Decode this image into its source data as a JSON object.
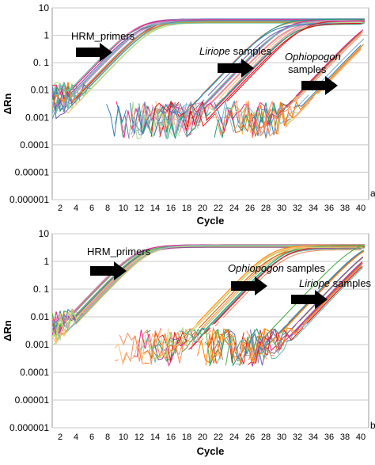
{
  "chart_data": [
    {
      "type": "line",
      "panel_label": "a",
      "xlabel": "Cycle",
      "ylabel": "ΔRn",
      "yscale": "log",
      "ylim": [
        1e-06,
        10
      ],
      "xlim": [
        1,
        41
      ],
      "x_ticks": [
        2,
        4,
        6,
        8,
        10,
        12,
        14,
        16,
        18,
        20,
        22,
        24,
        26,
        28,
        30,
        32,
        34,
        36,
        38,
        40
      ],
      "y_ticks": [
        "0.000001",
        "0.00001",
        "0.0001",
        "0.001",
        "0.01",
        "0. 1",
        "1",
        "10"
      ],
      "grid": "horizontal",
      "groups": [
        {
          "label": "HRM_primers",
          "italic": false,
          "n_curves": 24,
          "threshold_cycle_range": [
            4.2,
            7.0
          ],
          "plateau_range": [
            2.8,
            4.0
          ]
        },
        {
          "label": "Liriope samples",
          "italic_word": "Liriope",
          "n_curves": 20,
          "threshold_cycle_range": [
            21.0,
            26.0
          ],
          "plateau_range": [
            2.4,
            4.0
          ]
        },
        {
          "label": "Ophiopogon samples",
          "italic_word": "Ophiopogon",
          "n_curves": 12,
          "threshold_cycle_range": [
            33.0,
            36.5
          ],
          "plateau_range": null
        }
      ],
      "annotations": [
        {
          "text": "HRM_primers",
          "points_to_cycle": 8.5
        },
        {
          "text": "Liriope samples",
          "points_to_cycle": 25
        },
        {
          "text": "Ophiopogon samples",
          "points_to_cycle": 38.5
        }
      ]
    },
    {
      "type": "line",
      "panel_label": "b",
      "xlabel": "Cycle",
      "ylabel": "ΔRn",
      "yscale": "log",
      "ylim": [
        1e-06,
        10
      ],
      "xlim": [
        1,
        41
      ],
      "x_ticks": [
        2,
        4,
        6,
        8,
        10,
        12,
        14,
        16,
        18,
        20,
        22,
        24,
        26,
        28,
        30,
        32,
        34,
        36,
        38,
        40
      ],
      "y_ticks": [
        "0.000001",
        "0.00001",
        "0.0001",
        "0.001",
        "0.01",
        "0. 1",
        "1",
        "10"
      ],
      "grid": "horizontal",
      "groups": [
        {
          "label": "HRM_primers",
          "italic": false,
          "n_curves": 24,
          "threshold_cycle_range": [
            4.0,
            6.0
          ],
          "plateau_range": [
            3.2,
            4.2
          ]
        },
        {
          "label": "Ophiopogon samples",
          "italic_word": "Ophiopogon",
          "n_curves": 14,
          "threshold_cycle_range": [
            21.0,
            24.0
          ],
          "plateau_range": [
            2.5,
            4.0
          ]
        },
        {
          "label": "Liriope samples",
          "italic_word": "Liriope",
          "n_curves": 16,
          "threshold_cycle_range": [
            31.0,
            35.5
          ],
          "plateau_range": null
        }
      ],
      "annotations": [
        {
          "text": "HRM_primers",
          "points_to_cycle": 7.5
        },
        {
          "text": "Ophiopogon samples",
          "points_to_cycle": 28
        },
        {
          "text": "Liriope samples",
          "points_to_cycle": 37.5
        }
      ]
    }
  ],
  "colors": {
    "curves": [
      "#e41a1c",
      "#ff7f00",
      "#4daf4a",
      "#984ea3",
      "#377eb8",
      "#f781bf",
      "#a6d96a",
      "#66c2a5",
      "#fc8d62",
      "#8da0cb",
      "#e78ac3",
      "#d95f02",
      "#1b9e77",
      "#7570b3",
      "#e7298a",
      "#b2df8a",
      "#fdbf6f",
      "#80b1d3"
    ],
    "grid": "#c8c8c8",
    "arrow": "#000000"
  }
}
